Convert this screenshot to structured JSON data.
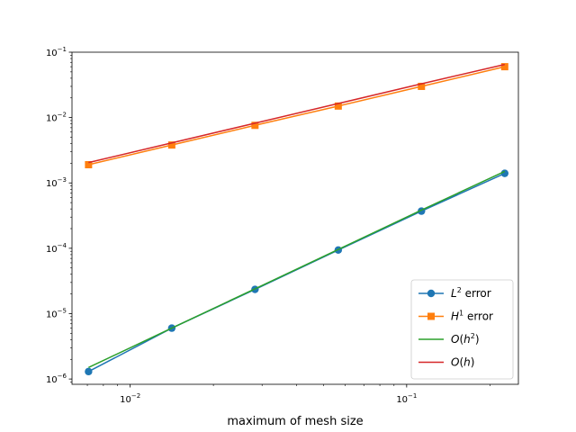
{
  "chart_data": {
    "type": "line",
    "xscale": "log",
    "yscale": "log",
    "xlim": [
      0.00616,
      0.2536
    ],
    "ylim": [
      8.3e-07,
      0.1
    ],
    "xlabel": "maximum of mesh size",
    "ylabel": "",
    "title": "",
    "x_ticks": [
      {
        "value": 0.01,
        "base": "10",
        "exp": "−2"
      },
      {
        "value": 0.1,
        "base": "10",
        "exp": "−1"
      }
    ],
    "y_ticks": [
      {
        "value": 1e-06,
        "base": "10",
        "exp": "−6"
      },
      {
        "value": 1e-05,
        "base": "10",
        "exp": "−5"
      },
      {
        "value": 0.0001,
        "base": "10",
        "exp": "−4"
      },
      {
        "value": 0.001,
        "base": "10",
        "exp": "−3"
      },
      {
        "value": 0.01,
        "base": "10",
        "exp": "−2"
      },
      {
        "value": 0.1,
        "base": "10",
        "exp": "−1"
      }
    ],
    "series": [
      {
        "name": "L2 error",
        "legend_main": "L",
        "legend_sup": "2",
        "legend_rest": " error",
        "color": "#1f77b4",
        "marker": "circle",
        "x": [
          0.00707,
          0.01414,
          0.02828,
          0.05657,
          0.1131,
          0.2263
        ],
        "y": [
          1.3e-06,
          6e-06,
          2.35e-05,
          9.4e-05,
          0.00037,
          0.0014
        ]
      },
      {
        "name": "H1 error",
        "legend_main": "H",
        "legend_sup": "1",
        "legend_rest": " error",
        "color": "#ff7f0e",
        "marker": "square",
        "x": [
          0.00707,
          0.01414,
          0.02828,
          0.05657,
          0.1131,
          0.2263
        ],
        "y": [
          0.0019,
          0.0038,
          0.0076,
          0.015,
          0.03,
          0.06
        ]
      },
      {
        "name": "O(h^2)",
        "legend_main": "O(h",
        "legend_sup": "2",
        "legend_rest": ")",
        "color": "#2ca02c",
        "marker": "none",
        "x": [
          0.00707,
          0.01414,
          0.02828,
          0.05657,
          0.1131,
          0.2263
        ],
        "y": [
          1.5e-06,
          6e-06,
          2.4e-05,
          9.6e-05,
          0.000384,
          0.0015
        ]
      },
      {
        "name": "O(h)",
        "legend_main": "O(h)",
        "legend_sup": "",
        "legend_rest": "",
        "color": "#d62728",
        "marker": "none",
        "x": [
          0.00707,
          0.01414,
          0.02828,
          0.05657,
          0.1131,
          0.2263
        ],
        "y": [
          0.00205,
          0.0041,
          0.0082,
          0.0164,
          0.0328,
          0.065
        ]
      }
    ],
    "legend_position": "lower-right",
    "grid": false
  }
}
